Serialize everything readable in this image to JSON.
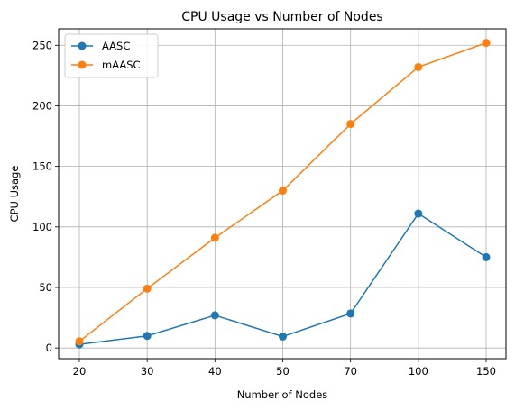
{
  "chart_data": {
    "type": "line",
    "title": "CPU Usage vs Number of Nodes",
    "xlabel": "Number of Nodes",
    "ylabel": "CPU Usage",
    "categories": [
      "20",
      "30",
      "40",
      "50",
      "70",
      "100",
      "150"
    ],
    "yticks": [
      0,
      50,
      100,
      150,
      200,
      250
    ],
    "ylim": [
      -8.8,
      263.6
    ],
    "grid": true,
    "legend_position": "upper-left",
    "series": [
      {
        "name": "AASC",
        "color": "#1f77b4",
        "values": [
          3,
          10,
          27,
          9.5,
          28.5,
          111,
          75
        ]
      },
      {
        "name": "mAASC",
        "color": "#ff7f0e",
        "values": [
          5.5,
          49,
          91,
          130,
          185,
          232,
          252
        ]
      }
    ]
  }
}
